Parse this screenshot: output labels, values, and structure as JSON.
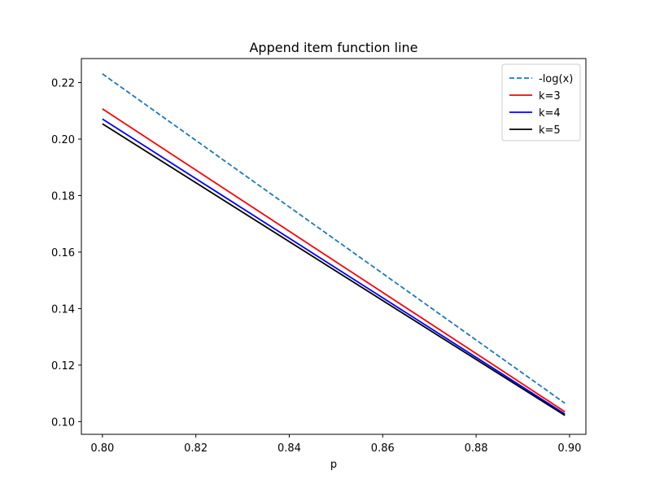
{
  "chart_data": {
    "type": "line",
    "title": "Append item function line",
    "xlabel": "p",
    "ylabel": "",
    "xlim": [
      0.7955,
      0.9035
    ],
    "ylim": [
      0.0955,
      0.2285
    ],
    "xticks": [
      0.8,
      0.82,
      0.84,
      0.86,
      0.88,
      0.9
    ],
    "xtick_labels": [
      "0.80",
      "0.82",
      "0.84",
      "0.86",
      "0.88",
      "0.90"
    ],
    "yticks": [
      0.1,
      0.12,
      0.14,
      0.16,
      0.18,
      0.2,
      0.22
    ],
    "ytick_labels": [
      "0.10",
      "0.12",
      "0.14",
      "0.16",
      "0.18",
      "0.20",
      "0.22"
    ],
    "grid": false,
    "legend_position": "top-right",
    "series": [
      {
        "name": "-log(x)",
        "color": "#1f77b4",
        "dash": true,
        "x": [
          0.8,
          0.899
        ],
        "y": [
          0.2231,
          0.1065
        ]
      },
      {
        "name": "k=3",
        "color": "#ff0000",
        "dash": false,
        "x": [
          0.8,
          0.899
        ],
        "y": [
          0.2107,
          0.1035
        ]
      },
      {
        "name": "k=4",
        "color": "#0000ff",
        "dash": false,
        "x": [
          0.8,
          0.899
        ],
        "y": [
          0.2071,
          0.1027
        ]
      },
      {
        "name": "k=5",
        "color": "#000000",
        "dash": false,
        "x": [
          0.8,
          0.899
        ],
        "y": [
          0.2054,
          0.1022
        ]
      }
    ]
  }
}
